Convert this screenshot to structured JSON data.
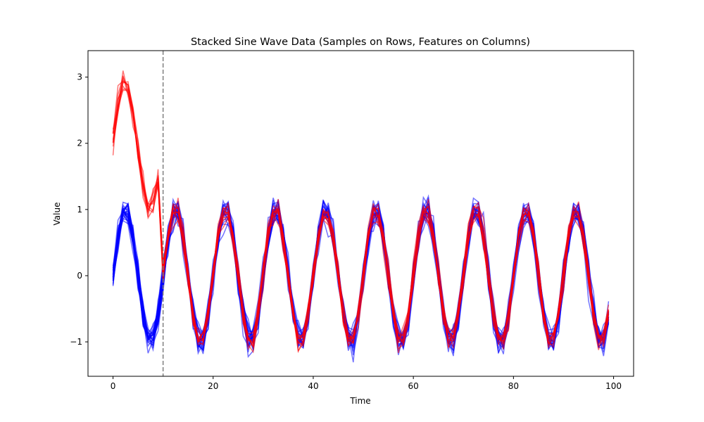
{
  "chart_data": {
    "type": "line",
    "title": "Stacked Sine Wave Data (Samples on Rows, Features on Columns)",
    "xlabel": "Time",
    "ylabel": "Value",
    "xlim": [
      -5,
      104
    ],
    "ylim": [
      -1.52,
      3.4
    ],
    "xticks": [
      0,
      20,
      40,
      60,
      80,
      100
    ],
    "yticks": [
      -1,
      0,
      1,
      2,
      3
    ],
    "xtick_labels": [
      "0",
      "20",
      "40",
      "60",
      "80",
      "100"
    ],
    "ytick_labels": [
      "−1",
      "0",
      "1",
      "2",
      "3"
    ],
    "grid": false,
    "legend": "none",
    "vline": {
      "x": 10,
      "style": "dashed",
      "color": "#808080"
    },
    "series_groups": [
      {
        "color": "#0000ff",
        "opacity": 0.55,
        "count": 25,
        "x_range": [
          0,
          99
        ],
        "model": "sin(2*pi*x/10)",
        "noise": 0.1
      },
      {
        "color": "#ff0000",
        "opacity": 0.55,
        "count": 10,
        "x_range": [
          0,
          99
        ],
        "model": "offset segment x<10, then sin(2*pi*x/10)",
        "noise": 0.08,
        "segment_before_line": {
          "x": [
            0,
            1,
            2,
            3,
            4,
            5,
            6,
            7,
            8,
            9
          ],
          "y": [
            2.05,
            2.6,
            2.98,
            2.85,
            2.45,
            1.85,
            1.32,
            1.0,
            1.08,
            1.42
          ]
        }
      }
    ]
  }
}
